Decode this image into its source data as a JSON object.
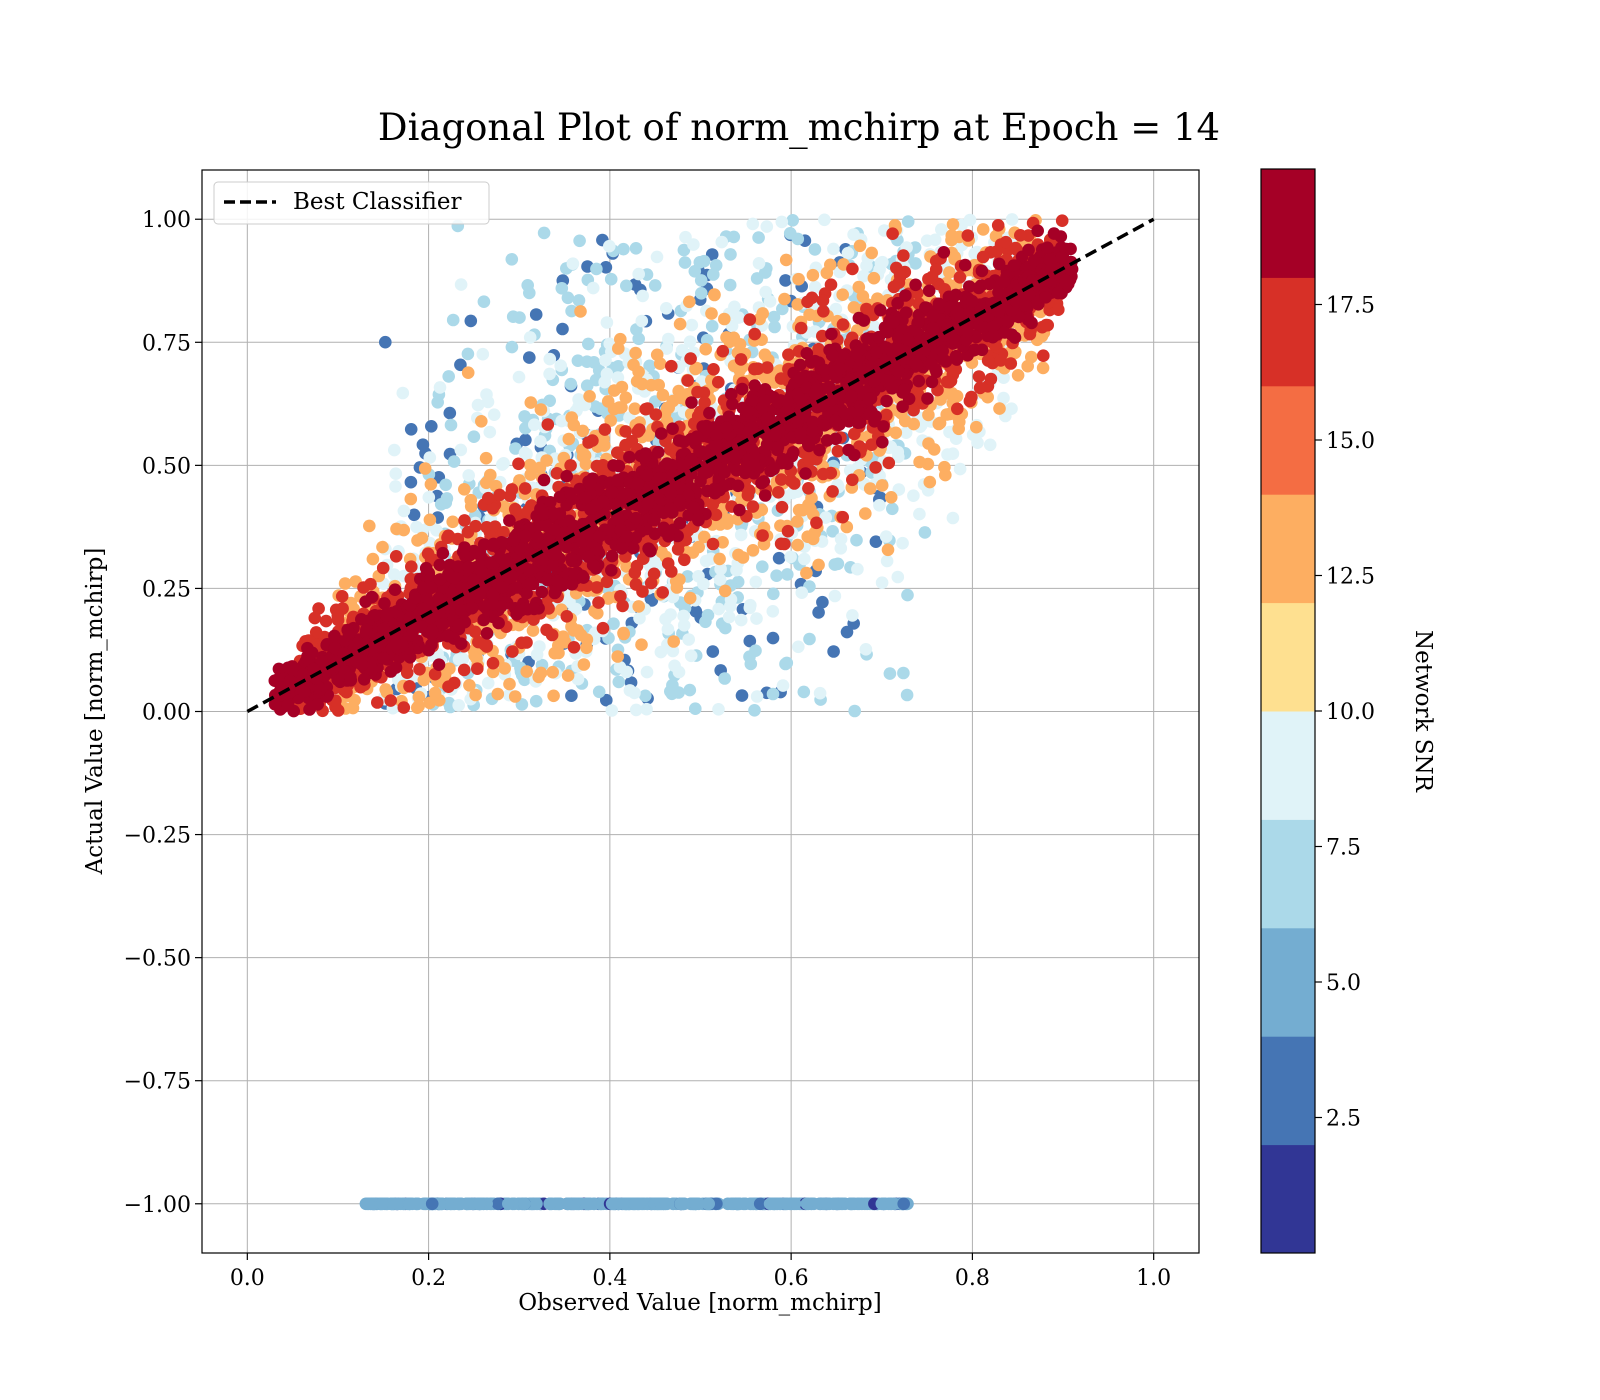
{
  "chart_data": {
    "type": "scatter",
    "title": "Diagonal Plot of norm_mchirp at Epoch = 14",
    "xlabel": "Observed Value [norm_mchirp]",
    "ylabel": "Actual Value [norm_mchirp]",
    "xlim": [
      -0.05,
      1.05
    ],
    "ylim": [
      -1.1,
      1.1
    ],
    "x_ticks": [
      "0.0",
      "0.2",
      "0.4",
      "0.6",
      "0.8",
      "1.0"
    ],
    "y_ticks": [
      "1.00",
      "0.75",
      "0.50",
      "0.25",
      "0.00",
      "−0.25",
      "−0.50",
      "−0.75",
      "−1.00"
    ],
    "grid": true,
    "legend": {
      "position": "top-left",
      "entries": [
        "Best Classifier"
      ]
    },
    "best_classifier_line": {
      "x": [
        0.0,
        1.0
      ],
      "y": [
        0.0,
        1.0
      ],
      "style": "dashed",
      "color": "#000000"
    },
    "colorbar": {
      "label": "Network SNR",
      "range": [
        0,
        20
      ],
      "tick_labels": [
        "2.5",
        "5.0",
        "7.5",
        "10.0",
        "12.5",
        "15.0",
        "17.5"
      ],
      "tick_values": [
        2.5,
        5.0,
        7.5,
        10.0,
        12.5,
        15.0,
        17.5
      ],
      "color_bins": [
        "#313695",
        "#4575b4",
        "#74add1",
        "#abd9e9",
        "#e0f3f8",
        "#fee090",
        "#fdae61",
        "#f46d43",
        "#d73027",
        "#a50026"
      ]
    },
    "point_clusters": [
      {
        "description_snr": 18.5,
        "x_range": [
          0.03,
          0.91
        ],
        "y_around": "diagonal",
        "spread": 0.05
      },
      {
        "description_snr": 16.0,
        "x_range": [
          0.05,
          0.9
        ],
        "y_around": "diagonal",
        "spread": 0.09
      },
      {
        "description_snr": 13.0,
        "x_range": [
          0.1,
          0.88
        ],
        "y_around": "diagonal",
        "spread": 0.14
      },
      {
        "description_snr": 9.0,
        "x_range": [
          0.15,
          0.85
        ],
        "y_around": "diagonal",
        "spread": 0.22
      },
      {
        "description_snr": 6.0,
        "x_range": [
          0.2,
          0.75
        ],
        "y_around": "diagonal",
        "spread": 0.35
      },
      {
        "description_snr": 3.0,
        "x_range": [
          0.15,
          0.7
        ],
        "y_around": "diagonal",
        "spread": 0.45
      }
    ],
    "row_at_minus_one": {
      "y": -1.0,
      "x_range": [
        0.13,
        0.73
      ],
      "dominant_snr": 5.0
    }
  }
}
